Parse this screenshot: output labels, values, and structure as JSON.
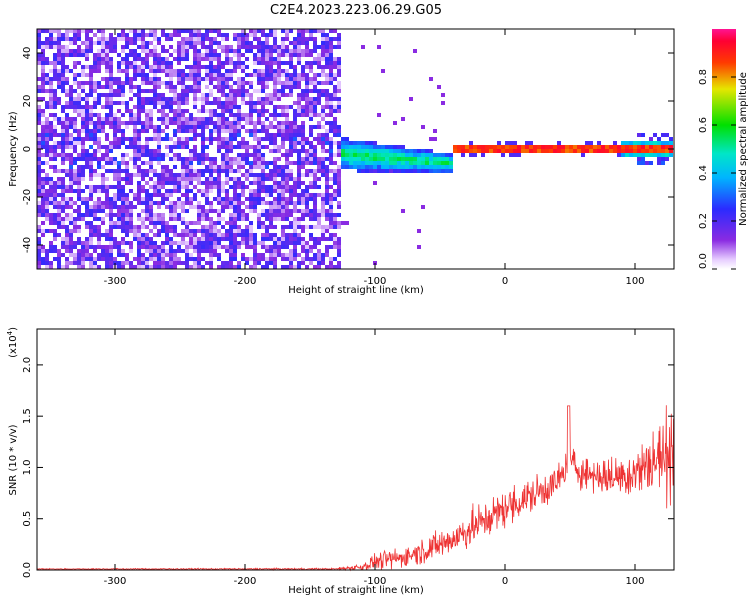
{
  "figure": {
    "title": "C2E4.2023.223.06.29.G05"
  },
  "chart_data": [
    {
      "type": "heatmap",
      "xlabel": "Height of straight line (km)",
      "ylabel": "Frequency (Hz)",
      "xlim": [
        -360,
        130
      ],
      "ylim": [
        -50,
        50
      ],
      "x_ticks": [
        -300,
        -200,
        -100,
        0,
        100
      ],
      "y_ticks": [
        -40,
        -20,
        0,
        20,
        40
      ],
      "colorbar": {
        "label": "Normalized spectral amplitude",
        "range": [
          0.0,
          1.0
        ],
        "ticks": [
          0.0,
          0.2,
          0.4,
          0.6,
          0.8
        ],
        "colormap": "rainbow (white/violet → blue → cyan → green → yellow → red → magenta)"
      },
      "regions": [
        {
          "x_range": [
            -360,
            -125
          ],
          "description": "broadband noise, amplitude ~0.1–0.3 across all frequencies"
        },
        {
          "x_range": [
            -130,
            -40
          ],
          "frequency_center": -3,
          "frequency_width": 10,
          "amplitude": 0.4
        },
        {
          "x_range": [
            -40,
            130
          ],
          "frequency_center": 0,
          "frequency_width": 2,
          "amplitude": 0.9
        }
      ]
    },
    {
      "type": "line",
      "xlabel": "Height of straight line (km)",
      "ylabel": "SNR (10 * v/v)",
      "y_scale_label": "(x10",
      "y_scale_exponent": "4",
      "y_scale_suffix": ")",
      "xlim": [
        -360,
        130
      ],
      "ylim": [
        0,
        2.35
      ],
      "x_ticks": [
        -300,
        -200,
        -100,
        0,
        100
      ],
      "y_ticks": [
        0.0,
        0.5,
        1.0,
        1.5,
        2.0
      ],
      "series_color": "#ee3333",
      "envelope": {
        "x": [
          -360,
          -130,
          -110,
          -100,
          -80,
          -60,
          -40,
          -20,
          0,
          20,
          40,
          50,
          60,
          80,
          100,
          120,
          130
        ],
        "mean": [
          0.01,
          0.01,
          0.03,
          0.08,
          0.12,
          0.2,
          0.3,
          0.45,
          0.6,
          0.72,
          0.85,
          1.05,
          0.95,
          0.9,
          0.95,
          1.1,
          1.2
        ],
        "noise": [
          0.005,
          0.01,
          0.05,
          0.1,
          0.12,
          0.15,
          0.2,
          0.22,
          0.22,
          0.22,
          0.2,
          0.2,
          0.2,
          0.22,
          0.3,
          0.45,
          0.6
        ]
      }
    }
  ]
}
